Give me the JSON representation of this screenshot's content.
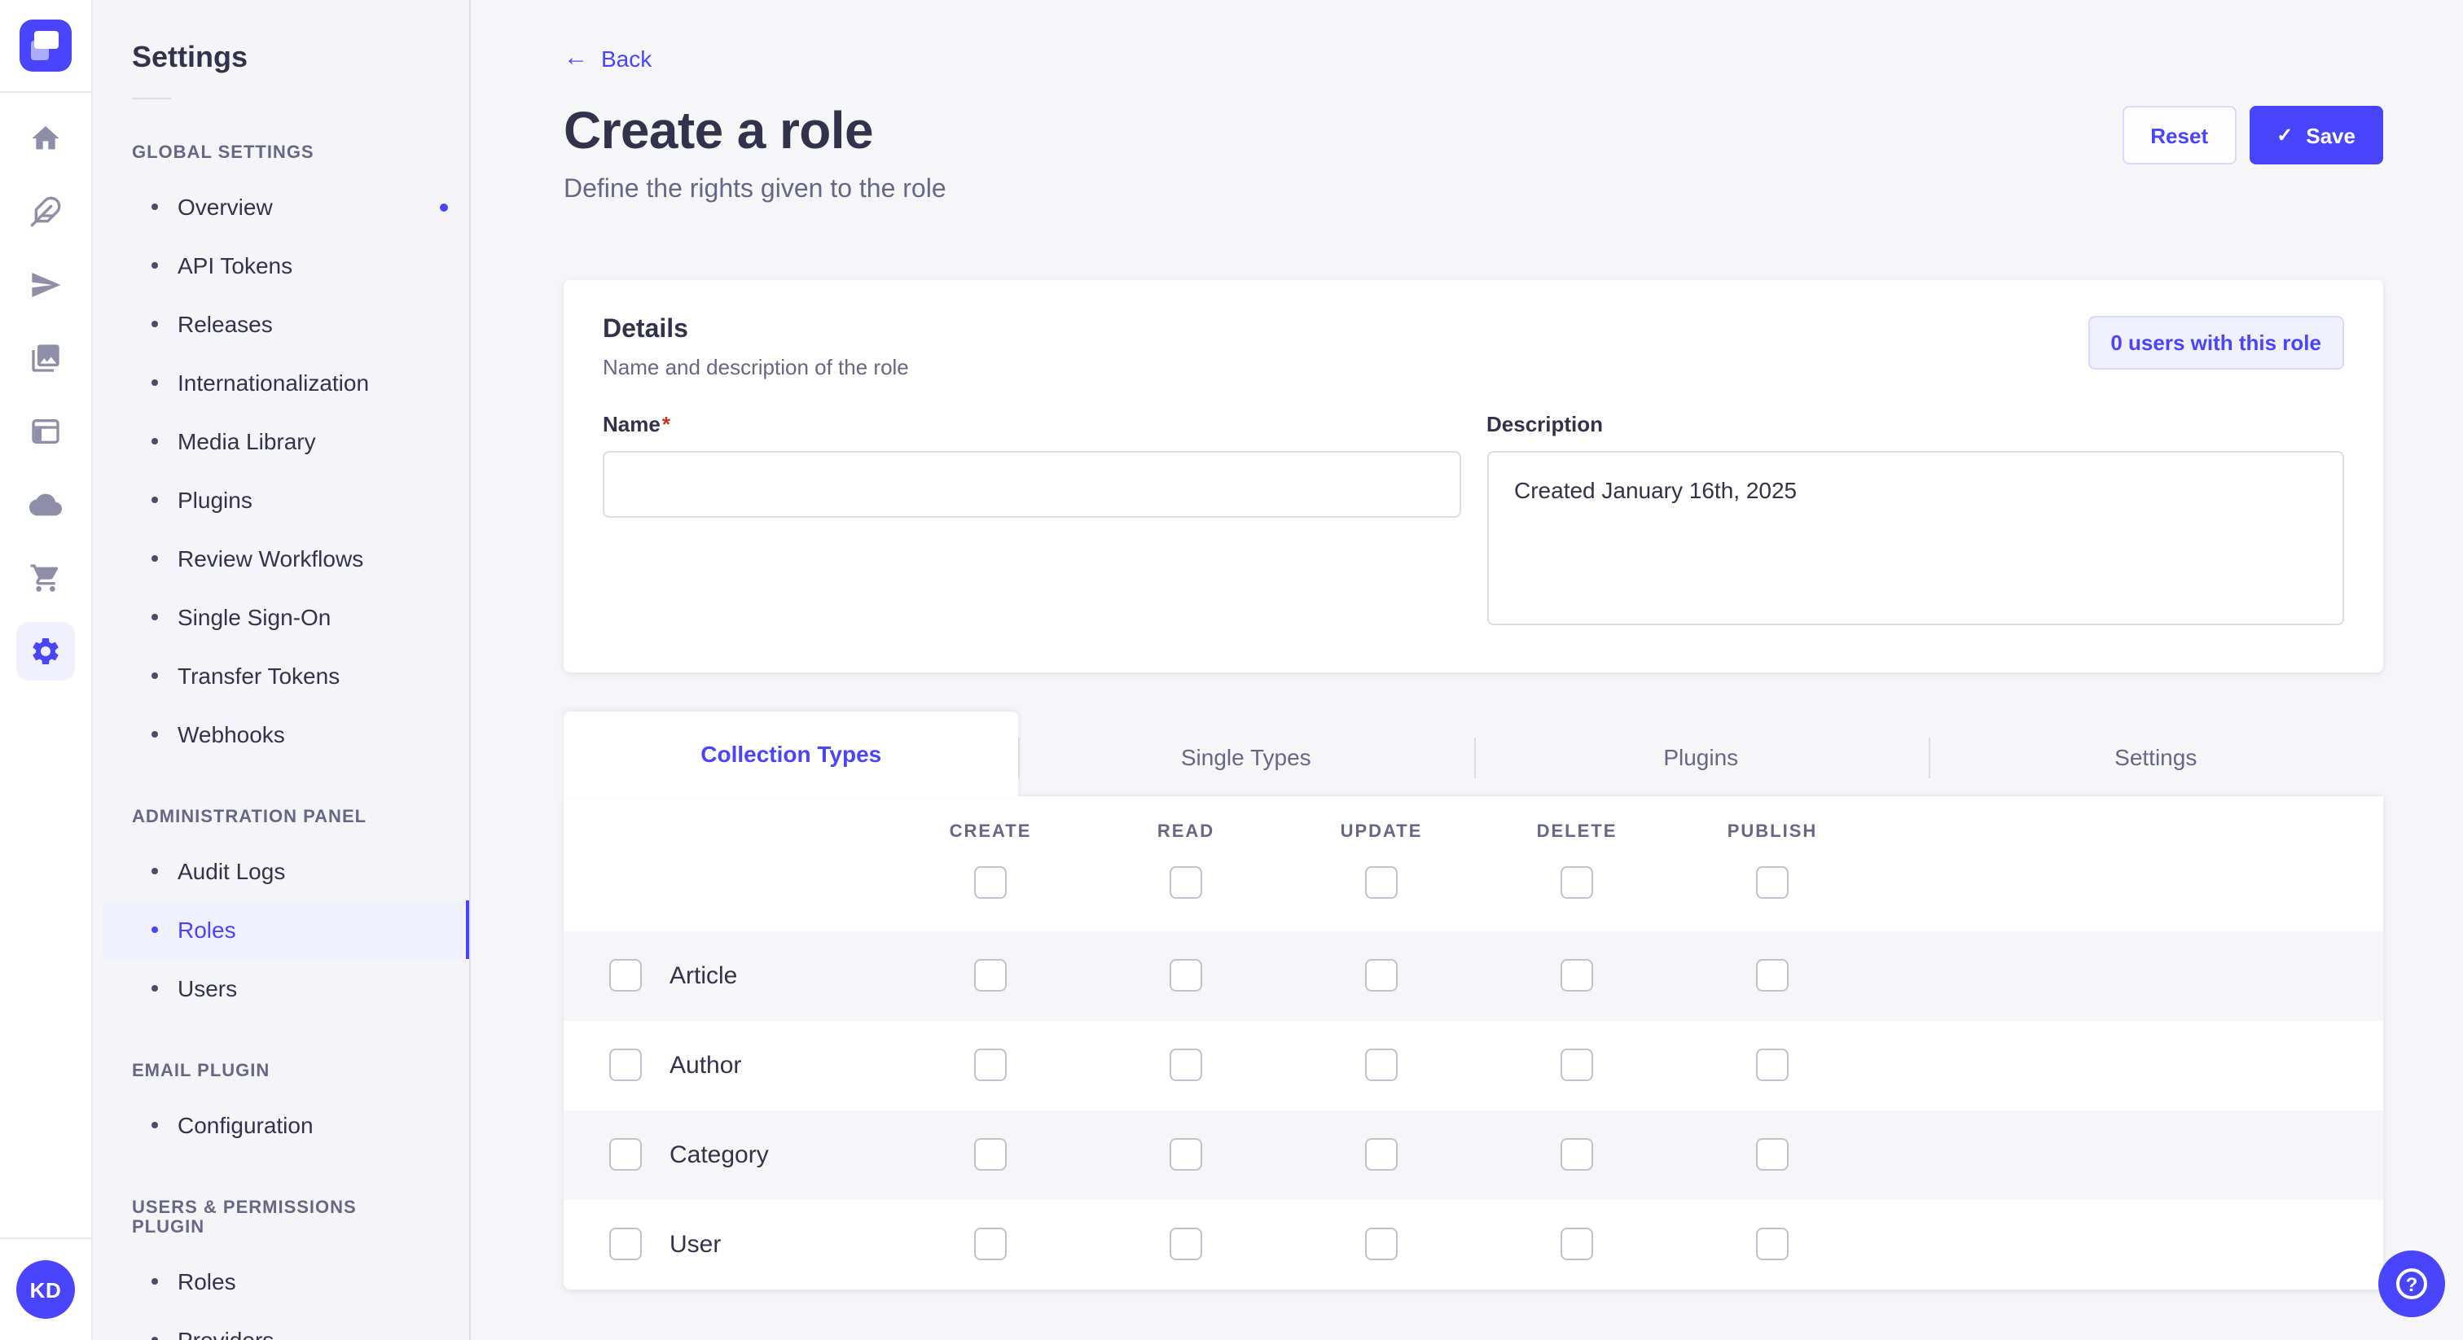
{
  "colors": {
    "accent": "#4945FF",
    "accent_bg": "#F0F0FF",
    "accent_border": "#D9D8FF",
    "text": "#32324D",
    "muted": "#666687",
    "page_bg": "#F6F6F9",
    "required": "#D02B20"
  },
  "workspace": {
    "avatar_initials": "KD",
    "strip_icons": [
      "strapi-logo",
      "home-icon",
      "feather-icon",
      "send-icon",
      "media-library-icon",
      "layout-icon",
      "cloud-icon",
      "cart-icon",
      "gear-icon"
    ],
    "active_strip_icon": "gear-icon"
  },
  "sidebar": {
    "title": "Settings",
    "sections": [
      {
        "label": "GLOBAL SETTINGS",
        "items": [
          {
            "label": "Overview",
            "notification_dot": true
          },
          {
            "label": "API Tokens"
          },
          {
            "label": "Releases"
          },
          {
            "label": "Internationalization"
          },
          {
            "label": "Media Library"
          },
          {
            "label": "Plugins"
          },
          {
            "label": "Review Workflows"
          },
          {
            "label": "Single Sign-On"
          },
          {
            "label": "Transfer Tokens"
          },
          {
            "label": "Webhooks"
          }
        ]
      },
      {
        "label": "ADMINISTRATION PANEL",
        "items": [
          {
            "label": "Audit Logs"
          },
          {
            "label": "Roles",
            "active": true
          },
          {
            "label": "Users"
          }
        ]
      },
      {
        "label": "EMAIL PLUGIN",
        "items": [
          {
            "label": "Configuration"
          }
        ]
      },
      {
        "label": "USERS & PERMISSIONS PLUGIN",
        "items": [
          {
            "label": "Roles"
          },
          {
            "label": "Providers"
          }
        ]
      }
    ]
  },
  "header": {
    "back_label": "Back",
    "back_icon": "arrow-left-icon",
    "title": "Create a role",
    "subtitle": "Define the rights given to the role",
    "reset_label": "Reset",
    "save_label": "Save",
    "save_icon": "checkmark-icon"
  },
  "details": {
    "title": "Details",
    "subtitle": "Name and description of the role",
    "users_badge_label": "0 users with this role",
    "name_label": "Name",
    "required_marker": "*",
    "name_value": "",
    "description_label": "Description",
    "description_value": "Created January 16th, 2025"
  },
  "tabs": [
    {
      "label": "Collection Types",
      "active": true
    },
    {
      "label": "Single Types",
      "active": false
    },
    {
      "label": "Plugins",
      "active": false
    },
    {
      "label": "Settings",
      "active": false
    }
  ],
  "permissions": {
    "columns": [
      "CREATE",
      "READ",
      "UPDATE",
      "DELETE",
      "PUBLISH"
    ],
    "select_all_checked": [
      false,
      false,
      false,
      false,
      false
    ],
    "rows": [
      {
        "name": "Article",
        "row_checked": false,
        "values": [
          false,
          false,
          false,
          false,
          false
        ]
      },
      {
        "name": "Author",
        "row_checked": false,
        "values": [
          false,
          false,
          false,
          false,
          false
        ]
      },
      {
        "name": "Category",
        "row_checked": false,
        "values": [
          false,
          false,
          false,
          false,
          false
        ]
      },
      {
        "name": "User",
        "row_checked": false,
        "values": [
          false,
          false,
          false,
          false,
          false
        ]
      }
    ]
  },
  "help": {
    "icon": "question-mark-icon",
    "glyph": "?"
  }
}
